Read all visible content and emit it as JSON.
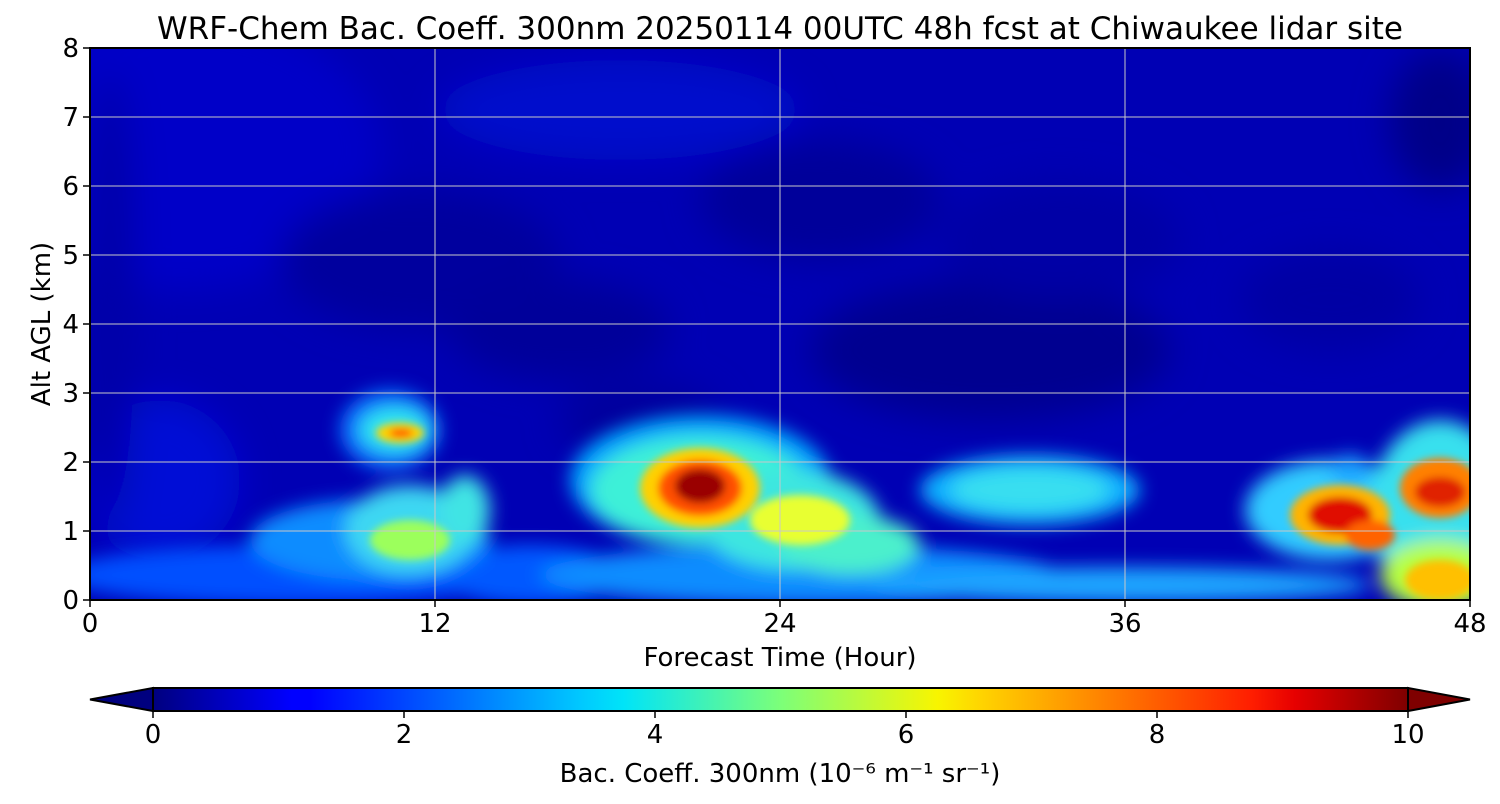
{
  "chart_data": {
    "type": "heatmap",
    "title": "WRF-Chem Bac. Coeff. 300nm  20250114 00UTC 48h fcst at Chiwaukee lidar site",
    "xlabel": "Forecast Time (Hour)",
    "ylabel": "Alt AGL (km)",
    "xlim": [
      0,
      48
    ],
    "ylim": [
      0,
      8
    ],
    "xticks": [
      0,
      12,
      24,
      36,
      48
    ],
    "yticks": [
      0,
      1,
      2,
      3,
      4,
      5,
      6,
      7,
      8
    ],
    "grid": true,
    "colorbar": {
      "label": "Bac. Coeff. 300nm  (10⁻⁶ m⁻¹ sr⁻¹)",
      "range": [
        0,
        10
      ],
      "ticks": [
        0,
        2,
        4,
        6,
        8,
        10
      ],
      "extend": "both",
      "colormap": "jet"
    },
    "features": [
      {
        "hour": 10.5,
        "alt_km": 2.45,
        "peak_value": 8.5
      },
      {
        "hour": 10.5,
        "alt_km": 0.8,
        "peak_value": 4.5
      },
      {
        "hour": 21.5,
        "alt_km": 1.65,
        "peak_value": 10.0
      },
      {
        "hour": 25.0,
        "alt_km": 1.1,
        "peak_value": 6.0
      },
      {
        "hour": 32.5,
        "alt_km": 1.6,
        "peak_value": 3.5
      },
      {
        "hour": 43.5,
        "alt_km": 1.2,
        "peak_value": 9.0
      },
      {
        "hour": 47.5,
        "alt_km": 1.6,
        "peak_value": 8.5
      },
      {
        "hour": 47.5,
        "alt_km": 0.2,
        "peak_value": 6.5
      }
    ]
  }
}
